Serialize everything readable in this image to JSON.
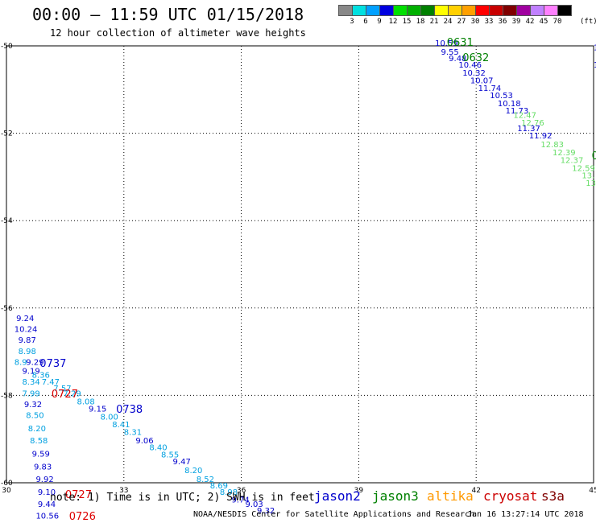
{
  "header": {
    "title": "00:00 – 11:59 UTC 01/15/2018",
    "subtitle": "12 hour collection of altimeter wave heights"
  },
  "colorbar": {
    "unit": "(ft)",
    "swatches": [
      "#888888",
      "#00e0e0",
      "#00a0ff",
      "#0000e0",
      "#00e000",
      "#00b000",
      "#008000",
      "#ffff00",
      "#ffd000",
      "#ffa000",
      "#ff0000",
      "#c80000",
      "#800000",
      "#a000a0",
      "#c080ff",
      "#ff80ff",
      "#000000"
    ],
    "labels": [
      "3",
      "6",
      "9",
      "12",
      "15",
      "18",
      "21",
      "24",
      "27",
      "30",
      "33",
      "36",
      "39",
      "42",
      "45",
      "70"
    ]
  },
  "footer": {
    "note": "note: 1) Time is in UTC; 2) SWH is in feet",
    "satellites": [
      {
        "name": "jason2",
        "color": "#0000cc"
      },
      {
        "name": "jason3",
        "color": "#008000"
      },
      {
        "name": "altika",
        "color": "#ff9900"
      },
      {
        "name": "cryosat",
        "color": "#cc0000"
      },
      {
        "name": "s3a",
        "color": "#800000"
      }
    ],
    "credit": "NOAA/NESDIS Center for Satellite Applications and Research",
    "generated": "Jan 16 13:27:14 UTC 2018"
  },
  "chart_data": {
    "type": "scatter",
    "xlim": [
      30,
      45
    ],
    "ylim": [
      -60,
      -50
    ],
    "x_ticks": [
      "30",
      "33",
      "36",
      "39",
      "42",
      "45"
    ],
    "y_ticks": [
      "-50",
      "-52",
      "-54",
      "-56",
      "-58",
      "-60"
    ],
    "grid": true,
    "colors": {
      "blue": "#0000cc",
      "cyan": "#00a0e0",
      "lgreen": "#66dd66",
      "green": "#008000",
      "red": "#dd0000"
    },
    "points": [
      {
        "x": 40.95,
        "y": -50.0,
        "label": "10.59",
        "color": "blue"
      },
      {
        "x": 41.1,
        "y": -50.2,
        "label": "9.55",
        "color": "blue"
      },
      {
        "x": 41.3,
        "y": -50.35,
        "label": "9.48",
        "color": "blue"
      },
      {
        "x": 41.55,
        "y": -50.5,
        "label": "10.46",
        "color": "blue"
      },
      {
        "x": 41.65,
        "y": -50.68,
        "label": "10.32",
        "color": "blue"
      },
      {
        "x": 41.85,
        "y": -50.86,
        "label": "10.07",
        "color": "blue"
      },
      {
        "x": 42.05,
        "y": -51.03,
        "label": "11.74",
        "color": "blue"
      },
      {
        "x": 42.35,
        "y": -51.2,
        "label": "10.53",
        "color": "blue"
      },
      {
        "x": 42.55,
        "y": -51.38,
        "label": "10.18",
        "color": "blue"
      },
      {
        "x": 42.75,
        "y": -51.55,
        "label": "11.73",
        "color": "blue"
      },
      {
        "x": 43.05,
        "y": -51.95,
        "label": "11.37",
        "color": "blue"
      },
      {
        "x": 43.35,
        "y": -52.12,
        "label": "11.92",
        "color": "blue"
      },
      {
        "x": 42.95,
        "y": -51.65,
        "label": "12.47",
        "color": "lgreen"
      },
      {
        "x": 43.15,
        "y": -51.82,
        "label": "12.76",
        "color": "lgreen"
      },
      {
        "x": 43.65,
        "y": -52.32,
        "label": "12.83",
        "color": "lgreen"
      },
      {
        "x": 43.95,
        "y": -52.5,
        "label": "12.39",
        "color": "lgreen"
      },
      {
        "x": 44.15,
        "y": -52.68,
        "label": "12.37",
        "color": "lgreen"
      },
      {
        "x": 44.45,
        "y": -52.86,
        "label": "12.59",
        "color": "lgreen"
      },
      {
        "x": 44.7,
        "y": -53.03,
        "label": "13.",
        "color": "lgreen"
      },
      {
        "x": 44.8,
        "y": -53.2,
        "label": "13.",
        "color": "lgreen"
      },
      {
        "x": 45.0,
        "y": -50.1,
        "label": "10.0",
        "color": "blue"
      },
      {
        "x": 45.0,
        "y": -50.5,
        "label": "10",
        "color": "blue"
      },
      {
        "x": 45.05,
        "y": -50.78,
        "label": "1",
        "color": "blue"
      },
      {
        "x": 30.25,
        "y": -56.3,
        "label": "9.24",
        "color": "blue"
      },
      {
        "x": 30.2,
        "y": -56.55,
        "label": "10.24",
        "color": "blue"
      },
      {
        "x": 30.3,
        "y": -56.8,
        "label": "9.87",
        "color": "blue"
      },
      {
        "x": 30.3,
        "y": -57.05,
        "label": "8.98",
        "color": "cyan"
      },
      {
        "x": 30.2,
        "y": -57.3,
        "label": "8.9",
        "color": "cyan"
      },
      {
        "x": 30.5,
        "y": -57.3,
        "label": "9.29",
        "color": "blue"
      },
      {
        "x": 30.4,
        "y": -57.5,
        "label": "9.19",
        "color": "blue"
      },
      {
        "x": 30.65,
        "y": -57.6,
        "label": "8.36",
        "color": "cyan"
      },
      {
        "x": 30.4,
        "y": -57.75,
        "label": "8.34",
        "color": "cyan"
      },
      {
        "x": 30.9,
        "y": -57.75,
        "label": "7.47",
        "color": "cyan"
      },
      {
        "x": 31.2,
        "y": -57.9,
        "label": "7.57",
        "color": "cyan"
      },
      {
        "x": 31.45,
        "y": -58.02,
        "label": "7.29",
        "color": "cyan"
      },
      {
        "x": 30.4,
        "y": -58.02,
        "label": "7.99",
        "color": "cyan"
      },
      {
        "x": 30.45,
        "y": -58.27,
        "label": "9.32",
        "color": "blue"
      },
      {
        "x": 31.8,
        "y": -58.2,
        "label": "8.08",
        "color": "cyan"
      },
      {
        "x": 32.1,
        "y": -58.37,
        "label": "9.15",
        "color": "blue"
      },
      {
        "x": 30.5,
        "y": -58.52,
        "label": "8.50",
        "color": "cyan"
      },
      {
        "x": 32.4,
        "y": -58.55,
        "label": "8.00",
        "color": "cyan"
      },
      {
        "x": 32.7,
        "y": -58.73,
        "label": "8.41",
        "color": "cyan"
      },
      {
        "x": 30.55,
        "y": -58.82,
        "label": "8.20",
        "color": "cyan"
      },
      {
        "x": 33.0,
        "y": -58.9,
        "label": "8.31",
        "color": "cyan"
      },
      {
        "x": 30.6,
        "y": -59.1,
        "label": "8.58",
        "color": "cyan"
      },
      {
        "x": 33.3,
        "y": -59.1,
        "label": "9.06",
        "color": "blue"
      },
      {
        "x": 33.65,
        "y": -59.25,
        "label": "8.40",
        "color": "cyan"
      },
      {
        "x": 30.65,
        "y": -59.4,
        "label": "9.59",
        "color": "blue"
      },
      {
        "x": 33.95,
        "y": -59.42,
        "label": "8.55",
        "color": "cyan"
      },
      {
        "x": 34.25,
        "y": -59.58,
        "label": "9.47",
        "color": "blue"
      },
      {
        "x": 30.7,
        "y": -59.7,
        "label": "9.83",
        "color": "blue"
      },
      {
        "x": 34.55,
        "y": -59.78,
        "label": "8.20",
        "color": "cyan"
      },
      {
        "x": 30.75,
        "y": -59.98,
        "label": "9.92",
        "color": "blue"
      },
      {
        "x": 34.85,
        "y": -59.98,
        "label": "8.52",
        "color": "cyan"
      },
      {
        "x": 35.2,
        "y": -60.13,
        "label": "8.69",
        "color": "cyan"
      },
      {
        "x": 30.8,
        "y": -60.28,
        "label": "9.10",
        "color": "blue"
      },
      {
        "x": 35.45,
        "y": -60.28,
        "label": "8.98",
        "color": "cyan"
      },
      {
        "x": 35.75,
        "y": -60.45,
        "label": "9.74",
        "color": "blue"
      },
      {
        "x": 30.8,
        "y": -60.55,
        "label": "9.44",
        "color": "blue"
      },
      {
        "x": 36.1,
        "y": -60.55,
        "label": "9.03",
        "color": "blue"
      },
      {
        "x": 36.4,
        "y": -60.7,
        "label": "9.32",
        "color": "blue"
      },
      {
        "x": 30.75,
        "y": -60.82,
        "label": "10.56",
        "color": "blue"
      }
    ],
    "time_labels": [
      {
        "x": 41.25,
        "y": -50.0,
        "label": "0631",
        "color": "green"
      },
      {
        "x": 41.65,
        "y": -50.35,
        "label": "0632",
        "color": "green"
      },
      {
        "x": 44.95,
        "y": -52.6,
        "label": "0",
        "color": "green"
      },
      {
        "x": 30.85,
        "y": -57.35,
        "label": "0737",
        "color": "blue"
      },
      {
        "x": 31.15,
        "y": -58.05,
        "label": "0727",
        "color": "red"
      },
      {
        "x": 32.8,
        "y": -58.4,
        "label": "0738",
        "color": "blue"
      },
      {
        "x": 31.5,
        "y": -60.35,
        "label": "0727",
        "color": "red"
      },
      {
        "x": 31.6,
        "y": -60.85,
        "label": "0726",
        "color": "red"
      }
    ]
  }
}
